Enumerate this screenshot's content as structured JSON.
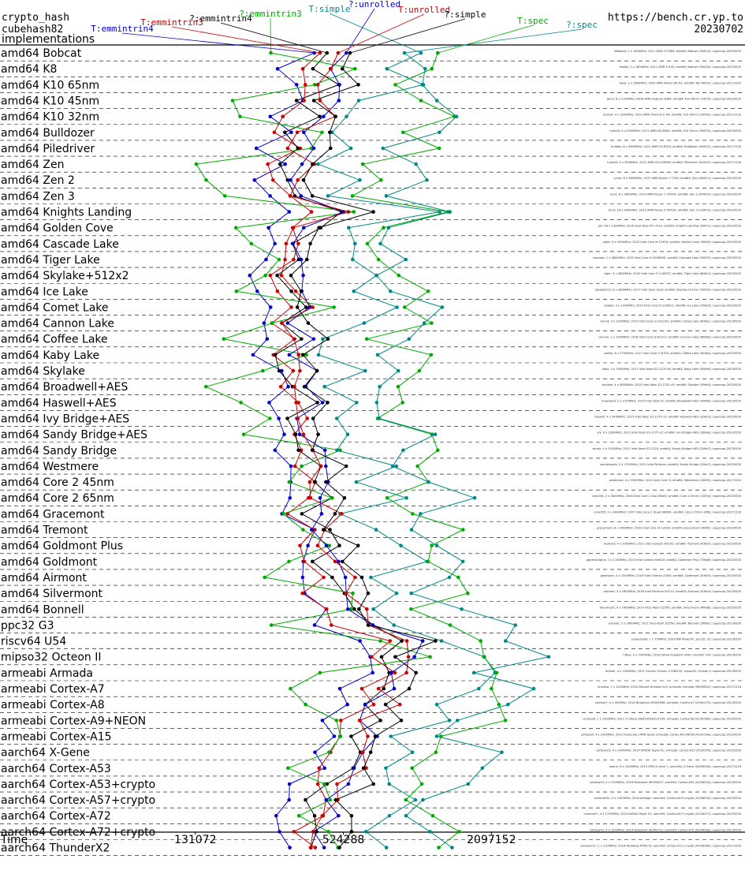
{
  "header": {
    "line1": "crypto_hash",
    "line2": "cubehash82",
    "line3": "implementations",
    "site": "https://bench.cr.yp.to",
    "date": "20230702"
  },
  "chart_data": {
    "type": "line",
    "xaxis": {
      "label": "Time",
      "scale": "log2",
      "ticks": [
        131072,
        524288,
        2097152
      ],
      "range": [
        32768,
        16777216
      ]
    },
    "series": [
      {
        "name": "T:emmintrin4",
        "color": "#0000cc",
        "base": [
          18,
          18.55
        ],
        "label_at": [
          155,
          40
        ]
      },
      {
        "name": "T:emmintrin3",
        "color": "#cc0000",
        "base": [
          18.2,
          18.7
        ],
        "label_at": [
          218,
          32
        ]
      },
      {
        "name": "?:emmintrin4",
        "color": "#000000",
        "base": [
          18.35,
          18.85
        ],
        "label_at": [
          280,
          27
        ]
      },
      {
        "name": "?:emmintrin3",
        "color": "#00aa00",
        "base": [
          17.3,
          19.2
        ],
        "label_at": [
          343,
          21
        ]
      },
      {
        "name": "T:simple",
        "color": "#008888",
        "base": [
          18.9,
          20.05
        ],
        "label_at": [
          418,
          15
        ]
      },
      {
        "name": "?:unrolled",
        "color": "#0000cc",
        "base": [
          18.5,
          18.95
        ],
        "label_at": [
          475,
          9
        ]
      },
      {
        "name": "T:unrolled",
        "color": "#cc0000",
        "base": [
          18.45,
          19.0
        ],
        "label_at": [
          538,
          16
        ]
      },
      {
        "name": "?:simple",
        "color": "#000000",
        "base": [
          18.6,
          19.15
        ],
        "label_at": [
          590,
          22
        ]
      },
      {
        "name": "T:spec",
        "color": "#00aa00",
        "base": [
          19.5,
          20.6
        ],
        "label_at": [
          676,
          30
        ]
      },
      {
        "name": "?:spec",
        "color": "#008888",
        "base": [
          19.6,
          20.75
        ],
        "label_at": [
          738,
          35
        ]
      }
    ],
    "rows": [
      {
        "label": "amd64 Bobcat",
        "mult": 1.15,
        "notes": [
          "bBobcat; 2 x 1600MHz; 2011 AMD G-T56N; amd64; Bobcat (500f10); supercop-20230530"
        ]
      },
      {
        "label": "amd64 K8",
        "mult": 1.05,
        "notes": [
          "kkaibt; 2 x 1800MHz; 2011 AMD E-450; amd64; Bobcat (500f20); supercop-20230530"
        ]
      },
      {
        "label": "amd64 K10 65nm",
        "mult": 1.1,
        "notes": [
          "bose; 2 x 2600MHz; 2005 AMD Athlon 64 X2; amd64; K8 (40f32); supercop-20171020"
        ]
      },
      {
        "label": "amd64 K10 45nm",
        "mult": 1.0,
        "notes": [
          "goc0; 6 x 2100MHz; 2008 AMD Opteron 8384; amd64; K10 65nm (10f23); supercop-20230530"
        ]
      },
      {
        "label": "amd64 K10 32nm",
        "mult": 0.95,
        "notes": [
          "hydra4; 4 x 3200MHz; 2010 AMD Phenom II X4; amd64; K10 45nm (100f42); supercop-20171218"
        ]
      },
      {
        "label": "amd64 Bulldozer",
        "mult": 0.9,
        "notes": [
          "hydra3; 4 x 2900MHz; 2011 AMD A8-3850; amd64; K10 32nm (300f10); supercop-20230530"
        ]
      },
      {
        "label": "amd64 Piledriver",
        "mult": 0.85,
        "notes": [
          "bulldoz; 8 x 3600MHz; 2011 AMD FX-8150; amd64; Bulldozer (600f12); supercop-20171218"
        ]
      },
      {
        "label": "amd64 Zen",
        "mult": 0.8,
        "notes": [
          "hydra9; 4 x 3500MHz; 2012 AMD A10-5800K; amd64; Piledriver (610f01); supercop-20171218"
        ]
      },
      {
        "label": "amd64 Zen 2",
        "mult": 0.78,
        "notes": [
          "ryzen; 8 x 3600MHz; 2017 AMD Ryzen 7 1700; amd64; Zen (800f11); supercop-20230530"
        ]
      },
      {
        "label": "amd64 Zen 3",
        "mult": 0.75,
        "notes": [
          "zen2; 8 x 3600MHz; 2019 AMD Ryzen 7 3700X; amd64; Zen 2 (870f10); supercop-20230530"
        ]
      },
      {
        "label": "amd64 Knights Landing",
        "mult": 1.2,
        "notes": [
          "zen3; 16 x 3400MHz; 2021 AMD Ryzen 9 5950X; amd64; Zen 3 (a20f10); supercop-20230530"
        ]
      },
      {
        "label": "amd64 Golden Cove",
        "mult": 0.9,
        "notes": [
          "phi; 64 x 1300MHz; 2016 Intel Xeon Phi 7210; amd64; Knights Landing (50671); supercop-20230530"
        ]
      },
      {
        "label": "amd64 Cascade Lake",
        "mult": 0.82,
        "notes": [
          "alder; 8 x 3900MHz; 2022 Intel Core i9-12900; amd64; Golden Cove (906f2); supercop-20230530"
        ]
      },
      {
        "label": "amd64 Tiger Lake",
        "mult": 0.8,
        "notes": [
          "cascade; 2 x 3800MHz; 2019 Intel Core i9-10980XE; amd64; Cascade Lake (50657); supercop-20230530"
        ]
      },
      {
        "label": "amd64 Skylake+512x2",
        "mult": 0.8,
        "notes": [
          "tiger; 4 x 2800MHz; 2020 Intel Core i7-1165G7; amd64; Tiger Lake (806c1); supercop-20230530"
        ]
      },
      {
        "label": "amd64 Ice Lake",
        "mult": 0.78,
        "notes": [
          "skylake512; 8 x 3800MHz; 2017 Intel Xeon Gold; amd64; Skylake+512x2 (50654); supercop-20230530"
        ]
      },
      {
        "label": "amd64 Comet Lake",
        "mult": 0.8,
        "notes": [
          "icelake; 4 x 1100MHz; 2019 Intel Core i5-1035G1; amd64; Ice Lake (706e5); supercop-20230530"
        ]
      },
      {
        "label": "amd64 Cannon Lake",
        "mult": 0.8,
        "notes": [
          "comet; 4 x 2100MHz; 2019 Intel Core i3-10110U; amd64; Comet Lake (806ec); supercop-20230530"
        ]
      },
      {
        "label": "amd64 Coffee Lake",
        "mult": 0.82,
        "notes": [
          "cannon; 2 x 2200MHz; 2018 Intel Core i3-8121U; amd64; Cannon Lake (60663); supercop-20230530"
        ]
      },
      {
        "label": "amd64 Kaby Lake",
        "mult": 0.82,
        "notes": [
          "coffee; 6 x 3700MHz; 2017 Intel Core i7-8700; amd64; Coffee Lake (906ea); supercop-20230530"
        ]
      },
      {
        "label": "amd64 Skylake",
        "mult": 0.83,
        "notes": [
          "kaby; 4 x 3500MHz; 2017 Intel Xeon E3-1220 v6; amd64; Kaby Lake (906e9); supercop-20230530"
        ]
      },
      {
        "label": "amd64 Broadwell+AES",
        "mult": 0.85,
        "notes": [
          "skylake; 4 x 3600MHz; 2015 Intel Xeon E3-1220 v5; amd64; Skylake (506e3); supercop-20230530"
        ]
      },
      {
        "label": "amd64 Haswell+AES",
        "mult": 0.88,
        "notes": [
          "broadwell; 2 x 2100MHz; 2015 Intel Xeon D; amd64; Broadwell+AES (50663); supercop-20230530"
        ]
      },
      {
        "label": "amd64 Ivy Bridge+AES",
        "mult": 0.9,
        "notes": [
          "haswell; 4 x 3400MHz; 2013 Intel Xeon E3-1275 v3; amd64; Haswell+AES (306c3); supercop-20230530"
        ]
      },
      {
        "label": "amd64 Sandy Bridge+AES",
        "mult": 0.92,
        "notes": [
          "ivy; 4 x 3300MHz; 2012 Intel Xeon E3-1275 v2; amd64; Ivy Bridge+AES (306a9); supercop-20230530"
        ]
      },
      {
        "label": "amd64 Sandy Bridge",
        "mult": 0.95,
        "notes": [
          "sandy; 4 x 3100MHz; 2011 Intel Xeon E3-1220; amd64; Sandy Bridge+AES (206a7); supercop-20230530"
        ]
      },
      {
        "label": "amd64 Westmere",
        "mult": 0.98,
        "notes": [
          "sandynoaes; 2 x 2700MHz; 2011 Intel Pentium; amd64; Sandy Bridge (206a7); supercop-20230530"
        ]
      },
      {
        "label": "amd64 Core 2 45nm",
        "mult": 1.0,
        "notes": [
          "westmere; 4 x 3300MHz; 2010 Intel Core i5; amd64; Westmere (20655); supercop-20171020"
        ]
      },
      {
        "label": "amd64 Core 2 65nm",
        "mult": 1.02,
        "notes": [
          "core245; 2 x 3000MHz; 2008 Intel Core 2 Duo E8400; amd64; Core 2 45nm (1067a); supercop-20230530"
        ]
      },
      {
        "label": "amd64 Gracemont",
        "mult": 1.0,
        "notes": [
          "core265; 4 x 2400MHz; 2007 Intel Core 2 Quad Q6600; amd64; Core 2 65nm (6fb); supercop-20171218"
        ]
      },
      {
        "label": "amd64 Tremont",
        "mult": 1.05,
        "notes": [
          "gracemont; 8 x 2400MHz; 2022 Intel Core i9-12900; amd64; Gracemont (906f2); supercop-20230530"
        ]
      },
      {
        "label": "amd64 Goldmont Plus",
        "mult": 1.08,
        "notes": [
          "tremont; 4 x 2000MHz; 2021 Intel Celeron N5105; amd64; Tremont (906c0); supercop-20230530"
        ]
      },
      {
        "label": "amd64 Goldmont",
        "mult": 1.1,
        "notes": [
          "goldmontplus; 2 x 1100MHz; 2019 Intel Celeron N4020; amd64; Goldmont Plus (706a8); supercop-20230530"
        ]
      },
      {
        "label": "amd64 Airmont",
        "mult": 1.15,
        "notes": [
          "goldmont; 4 x 1500MHz; 2016 Intel Celeron J3455; amd64; Goldmont (506c9); supercop-20230530"
        ]
      },
      {
        "label": "amd64 Silvermont",
        "mult": 1.18,
        "notes": [
          "airmont; 4 x 1600MHz; 2016 Intel Pentium N3710; amd64; Airmont (406c4); supercop-20230530"
        ]
      },
      {
        "label": "amd64 Bonnell",
        "mult": 1.25,
        "notes": [
          "silvermont; 4 x 2400MHz; 2014 Intel Atom C2550; amd64; Silvermont (406d8); supercop-20230530"
        ]
      },
      {
        "label": "ppc32 G3",
        "mult": 1.5,
        "notes": [
          "bonnell; 2 x 1800MHz; 2011 Intel Atom D2550; amd64; Bonnell (30661); supercop-20230530"
        ]
      },
      {
        "label": "riscv64 U54",
        "mult": 2.2,
        "notes": [
          "powerbook; 1 x 750MHz; 2003 IBM PowerPC; ppc32; G3; supercop-20230530"
        ]
      },
      {
        "label": "mipso32 Octeon II",
        "mult": 2.1,
        "notes": [
          "hifive; 4 x 1000MHz; 2018 SiFive Freedom U540; riscv64; U54; supercop-20230530"
        ]
      },
      {
        "label": "armeabi Armada",
        "mult": 2.0,
        "notes": [
          "octeon; 4 x 1000MHz; 2011 Cavium Octeon II CN6120; mipso32; Octeon II; supercop-20230530"
        ]
      },
      {
        "label": "armeabi Cortex-A7",
        "mult": 1.8,
        "notes": [
          "armada; 2 x 1200MHz; 2010 Marvell Armada 510; armeabi; Armada (560f5801); supercop-20171218"
        ]
      },
      {
        "label": "armeabi Cortex-A8",
        "mult": 1.7,
        "notes": [
          "cortexa7; 4 x 900MHz; 2014 Broadcom BCM2836; armeabi; Cortex-A7 (410fc075); supercop-20230530"
        ]
      },
      {
        "label": "armeabi Cortex-A9+NEON",
        "mult": 1.6,
        "notes": [
          "cortexa8; 1 x 1000MHz; 2012 TI Sitara XAM3359AZCZ100; armeabi; Cortex-A8 (413fc082); supercop-20230530"
        ]
      },
      {
        "label": "armeabi Cortex-A15",
        "mult": 1.5,
        "notes": [
          "cortexa9; 4 x 1000MHz; 2012 Freescale i.MX6 Quad; armeabi; Cortex-A9+NEON (412fc09a); supercop-20230530"
        ]
      },
      {
        "label": "aarch64 X-Gene",
        "mult": 1.4,
        "notes": [
          "cortexa15; 4 x 2000MHz; 2014 NVIDIA Tegra K1; armeabi; Cortex-A15 (413fc0f3); supercop-20230530"
        ]
      },
      {
        "label": "aarch64 Cortex-A53",
        "mult": 1.3,
        "notes": [
          "xgene; 8 x 2400MHz; 2014 APM X-Gene 1; aarch64; X-Gene (500f0000); supercop-20171218"
        ]
      },
      {
        "label": "aarch64 Cortex-A53+crypto",
        "mult": 1.2,
        "notes": [
          "cortexa53; 4 x 1200MHz; 2016 Broadcom BCM2837; aarch64; Cortex-A53 (410fd034); supercop-20230530"
        ]
      },
      {
        "label": "aarch64 Cortex-A57+crypto",
        "mult": 1.1,
        "notes": [
          "cortexa53c; 4 x 1500MHz; 2016 Amlogic; aarch64; Cortex-A53+crypto (410fd034); supercop-20230530"
        ]
      },
      {
        "label": "aarch64 Cortex-A72",
        "mult": 1.05,
        "notes": [
          "cortexa57; 4 x 1700MHz; 2015 NVIDIA Tegra X1; aarch64; Cortex-A57+crypto (411fd071); supercop-20230530"
        ]
      },
      {
        "label": "aarch64 Cortex-A72+crypto",
        "mult": 1.0,
        "notes": [
          "cortexa72; 4 x 1500MHz; 2019 Broadcom BCM2711; aarch64; Cortex-A72 (410fd083); supercop-20230530"
        ]
      },
      {
        "label": "aarch64 ThunderX2",
        "mult": 0.98,
        "notes": [
          "cortexa72c; 2 x 2100MHz; 2018 Mediatek MT8173; aarch64; Cortex-A72+crypto (410fd080); supercop-20171020"
        ]
      }
    ]
  }
}
